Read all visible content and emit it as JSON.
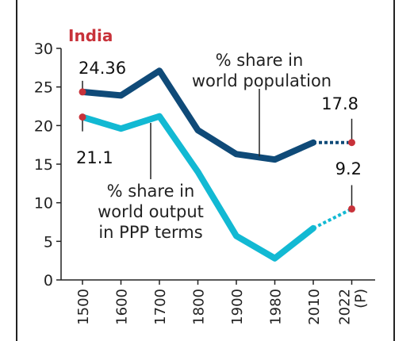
{
  "chart_data": {
    "type": "line",
    "title": "India",
    "categories": [
      "1500",
      "1600",
      "1700",
      "1800",
      "1900",
      "1980",
      "2010",
      "2022 (P)"
    ],
    "ylim": [
      0,
      30
    ],
    "yticks": [
      "0",
      "5",
      "10",
      "15",
      "20",
      "25",
      "30"
    ],
    "grid": false,
    "series": [
      {
        "name": "% share in world population",
        "values": [
          24.36,
          23.9,
          27.1,
          19.4,
          16.3,
          15.6,
          17.8,
          17.8
        ],
        "projected_from_index": 6,
        "color": "#0f4a78"
      },
      {
        "name": "% share in world output in PPP terms",
        "values": [
          21.1,
          19.6,
          21.2,
          14.0,
          5.7,
          2.8,
          6.7,
          9.2
        ],
        "projected_from_index": 6,
        "color": "#12b9d3"
      }
    ],
    "labels": {
      "population_line1": "% share in",
      "population_line2": "world  population",
      "output_line1": "% share in",
      "output_line2": "world output",
      "output_line3": "in PPP terms",
      "pop_1500": "24.36",
      "out_1500": "21.1",
      "pop_2022": "17.8",
      "out_2022": "9.2"
    },
    "marker_color": "#c8323a",
    "title_color": "#c8323a"
  }
}
